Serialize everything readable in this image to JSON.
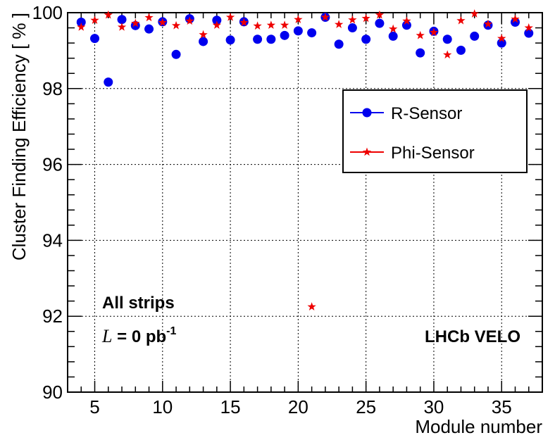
{
  "chart_data": {
    "type": "scatter",
    "xlabel": "Module number",
    "ylabel": "Cluster Finding Efficiency  [ % ]",
    "xlim": [
      3,
      38
    ],
    "ylim": [
      90,
      100
    ],
    "x_ticks": [
      5,
      10,
      15,
      20,
      25,
      30,
      35
    ],
    "y_ticks": [
      90,
      92,
      94,
      96,
      98,
      100
    ],
    "x_tick_labels": [
      "5",
      "10",
      "15",
      "20",
      "25",
      "30",
      "35"
    ],
    "y_tick_labels": [
      "90",
      "92",
      "94",
      "96",
      "98",
      "100"
    ],
    "grid": true,
    "legend_position": "top-right",
    "series": [
      {
        "name": "R-Sensor",
        "color": "#0000ee",
        "marker": "circle",
        "x": [
          4,
          5,
          6,
          7,
          8,
          9,
          10,
          11,
          12,
          13,
          14,
          15,
          16,
          17,
          18,
          19,
          20,
          21,
          22,
          23,
          24,
          25,
          26,
          27,
          28,
          29,
          30,
          31,
          32,
          33,
          34,
          35,
          36,
          37
        ],
        "y": [
          99.75,
          99.32,
          98.17,
          99.82,
          99.66,
          99.57,
          99.76,
          98.9,
          99.84,
          99.24,
          99.8,
          99.28,
          99.76,
          99.3,
          99.3,
          99.4,
          99.52,
          99.47,
          99.88,
          99.17,
          99.6,
          99.3,
          99.72,
          99.38,
          99.67,
          98.94,
          99.51,
          99.3,
          99.01,
          99.38,
          99.67,
          99.2,
          99.75,
          99.46
        ]
      },
      {
        "name": "Phi-Sensor",
        "color": "#ee0000",
        "marker": "star",
        "x": [
          4,
          5,
          6,
          7,
          8,
          9,
          10,
          11,
          12,
          13,
          14,
          15,
          16,
          17,
          18,
          19,
          20,
          21,
          22,
          23,
          24,
          25,
          26,
          27,
          28,
          29,
          30,
          31,
          32,
          33,
          34,
          35,
          36,
          37
        ],
        "y": [
          99.62,
          99.8,
          99.94,
          99.62,
          99.72,
          99.87,
          99.74,
          99.66,
          99.78,
          99.42,
          99.67,
          99.88,
          99.74,
          99.65,
          99.67,
          99.67,
          99.82,
          92.25,
          99.88,
          99.69,
          99.81,
          99.85,
          99.94,
          99.57,
          99.78,
          99.4,
          99.48,
          98.89,
          99.79,
          99.97,
          99.7,
          99.32,
          99.83,
          99.6
        ]
      }
    ],
    "annotations": {
      "all_strips": "All strips",
      "lumi_symbol": "L",
      "lumi_text": " = 0 pb",
      "lumi_sup": "-1",
      "experiment": "LHCb VELO"
    }
  }
}
